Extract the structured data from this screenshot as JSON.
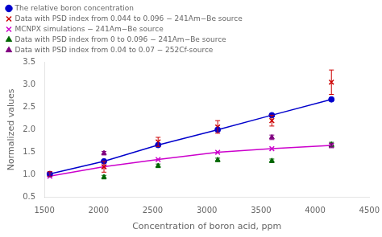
{
  "chart_data": {
    "type": "line",
    "xlabel": "Concentration of boron acid, ppm",
    "ylabel": "Normalized values",
    "xlim": [
      1500,
      4500
    ],
    "ylim": [
      0.5,
      3.5
    ],
    "xticks": [
      1500,
      2000,
      2500,
      3000,
      3500,
      4000,
      4500
    ],
    "yticks": [
      0.5,
      {
        "value": 1.0,
        "label": "1.0"
      },
      1.5,
      {
        "value": 2.0,
        "label": "2.0"
      },
      2.5,
      {
        "value": 3.0,
        "label": "3.0"
      },
      3.5
    ],
    "grid": false,
    "legend": "upper left",
    "series": [
      {
        "name": "The relative boron concentration",
        "type": "line",
        "color": "#0000cc",
        "marker": "o",
        "line_style": "solid",
        "x": [
          1550,
          2050,
          2550,
          3100,
          3600,
          4150
        ],
        "values": [
          1.02,
          1.3,
          1.66,
          2.0,
          2.32,
          2.67
        ]
      },
      {
        "name": "Data with PSD index from 0.044 to 0.096 − 241Am−Be source",
        "type": "scatter",
        "color": "#cc0000",
        "marker": "x",
        "line_style": "none",
        "x": [
          1550,
          2050,
          2550,
          3100,
          3600,
          4150
        ],
        "values": [
          1.02,
          1.18,
          1.73,
          2.06,
          2.2,
          3.05
        ],
        "yerr": [
          0.05,
          0.12,
          0.1,
          0.14,
          0.12,
          0.27
        ]
      },
      {
        "name": "MCNPX simulations − 241Am−Be source",
        "type": "line",
        "color": "#cc00cc",
        "marker": "x",
        "line_style": "solid",
        "x": [
          1550,
          2050,
          2550,
          3100,
          3600,
          4150
        ],
        "values": [
          0.97,
          1.18,
          1.34,
          1.5,
          1.58,
          1.65
        ]
      },
      {
        "name": "Data with PSD index from 0 to 0.096 − 241Am−Be source",
        "type": "scatter",
        "color": "#006600",
        "marker": "^",
        "line_style": "none",
        "x": [
          2050,
          2550,
          3100,
          3600,
          4150
        ],
        "values": [
          0.95,
          1.2,
          1.33,
          1.31,
          1.67
        ],
        "yerr": [
          0.04,
          0.04,
          0.04,
          0.04,
          0.05
        ]
      },
      {
        "name": "Data with PSD index from 0.04 to 0.07 − 252Cf-source",
        "type": "scatter",
        "color": "#800080",
        "marker": "^",
        "line_style": "none",
        "x": [
          1550,
          2050,
          3600,
          4150
        ],
        "values": [
          1.0,
          1.48,
          1.83,
          1.65
        ],
        "yerr": [
          0.04,
          0.04,
          0.05,
          0.05
        ]
      }
    ]
  }
}
